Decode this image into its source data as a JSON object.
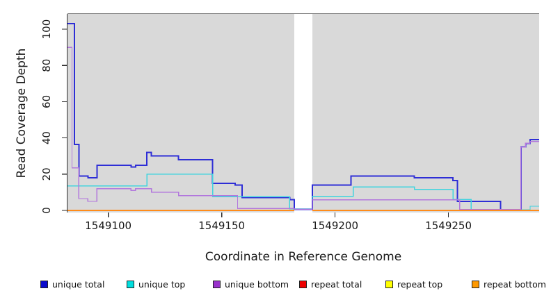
{
  "figure": {
    "x_axis_label": "Coordinate in Reference Genome",
    "y_axis_label": "Read Coverage Depth"
  },
  "chart_data": {
    "type": "line",
    "step": true,
    "title": "",
    "xlabel": "Coordinate in Reference Genome",
    "ylabel": "Read Coverage Depth",
    "xlim": [
      1549082,
      1549290
    ],
    "ylim": [
      0,
      108
    ],
    "x_ticks": [
      1549100,
      1549150,
      1549200,
      1549250
    ],
    "y_ticks": [
      0,
      20,
      40,
      60,
      80,
      100
    ],
    "grid": false,
    "legend_position": "bottom",
    "panel_bg": "#d9d9d9",
    "gap_region": [
      1549182,
      1549190
    ],
    "series": [
      {
        "name": "unique total",
        "color": "#2e2ed6",
        "legend_color": "#0a0acc",
        "width": 2,
        "segments": [
          [
            [
              1549082,
              103
            ],
            [
              1549085,
              36.5
            ],
            [
              1549087,
              19
            ],
            [
              1549091,
              18
            ],
            [
              1549095,
              25
            ],
            [
              1549110,
              24
            ],
            [
              1549112,
              25
            ],
            [
              1549117,
              32
            ],
            [
              1549119,
              30
            ],
            [
              1549131,
              28
            ],
            [
              1549146,
              15
            ],
            [
              1549156,
              14
            ],
            [
              1549159,
              7
            ],
            [
              1549180,
              6
            ],
            [
              1549182,
              0.6
            ],
            [
              1549190,
              14
            ],
            [
              1549207,
              19
            ],
            [
              1549235,
              18
            ],
            [
              1549252,
              16.5
            ],
            [
              1549254,
              5
            ],
            [
              1549273,
              0.3
            ],
            [
              1549282,
              35
            ],
            [
              1549284,
              37
            ],
            [
              1549286,
              39
            ],
            [
              1549290,
              39
            ]
          ]
        ]
      },
      {
        "name": "unique top",
        "color": "#3fd4de",
        "legend_color": "#00dede",
        "width": 1.4,
        "segments": [
          [
            [
              1549082,
              13.5
            ],
            [
              1549117,
              20
            ],
            [
              1549146,
              7.5
            ],
            [
              1549180,
              0.8
            ],
            [
              1549190,
              7.8
            ],
            [
              1549208,
              13
            ],
            [
              1549235,
              11.6
            ],
            [
              1549252,
              6
            ],
            [
              1549260,
              0.3
            ],
            [
              1549286,
              2.3
            ],
            [
              1549290,
              2.3
            ]
          ]
        ]
      },
      {
        "name": "unique bottom",
        "color": "#b277dd",
        "legend_color": "#9932cc",
        "width": 1.4,
        "segments": [
          [
            [
              1549082,
              90
            ],
            [
              1549084,
              23.5
            ],
            [
              1549087,
              6.5
            ],
            [
              1549091,
              5
            ],
            [
              1549095,
              12
            ],
            [
              1549110,
              11
            ],
            [
              1549112,
              12
            ],
            [
              1549119,
              10
            ],
            [
              1549131,
              8.2
            ],
            [
              1549157,
              1
            ],
            [
              1549182,
              0.6
            ],
            [
              1549190,
              5.9
            ],
            [
              1549255,
              0.5
            ],
            [
              1549282,
              35
            ],
            [
              1549284,
              37
            ],
            [
              1549286,
              38
            ],
            [
              1549290,
              38
            ]
          ]
        ]
      },
      {
        "name": "repeat total",
        "color": "#e02222",
        "legend_color": "#ee0000",
        "width": 1.2,
        "segments": [
          [
            [
              1549082,
              0
            ],
            [
              1549182,
              0
            ]
          ],
          [
            [
              1549190,
              0
            ],
            [
              1549290,
              0
            ]
          ]
        ]
      },
      {
        "name": "repeat top",
        "color": "#f5f520",
        "legend_color": "#ffff00",
        "width": 1.2,
        "segments": [
          [
            [
              1549082,
              0
            ],
            [
              1549182,
              0
            ]
          ],
          [
            [
              1549190,
              0
            ],
            [
              1549290,
              0
            ]
          ]
        ]
      },
      {
        "name": "repeat bottom",
        "color": "#ff8c1a",
        "legend_color": "#ff9900",
        "width": 1.8,
        "segments": [
          [
            [
              1549082,
              0
            ],
            [
              1549182,
              0
            ]
          ],
          [
            [
              1549190,
              0
            ],
            [
              1549290,
              0
            ]
          ]
        ]
      }
    ]
  }
}
